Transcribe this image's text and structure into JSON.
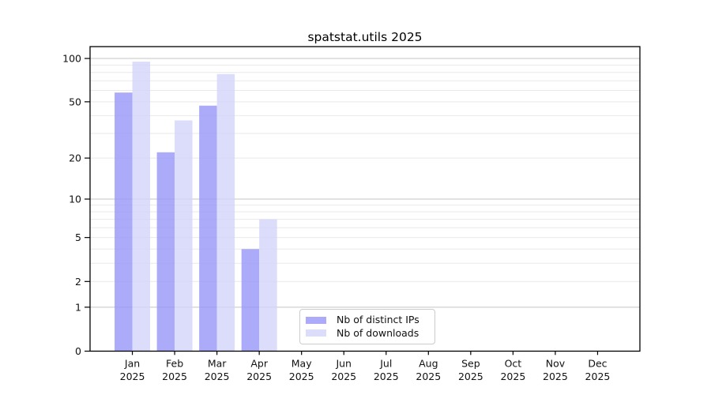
{
  "chart_data": {
    "type": "bar",
    "title": "spatstat.utils 2025",
    "categories": [
      "Jan",
      "Feb",
      "Mar",
      "Apr",
      "May",
      "Jun",
      "Jul",
      "Aug",
      "Sep",
      "Oct",
      "Nov",
      "Dec"
    ],
    "year_label": "2025",
    "series": [
      {
        "name": "Nb of distinct IPs",
        "color": "#9898f8",
        "values": [
          58,
          22,
          47,
          4,
          0,
          0,
          0,
          0,
          0,
          0,
          0,
          0
        ]
      },
      {
        "name": "Nb of downloads",
        "color": "#d4d4fa",
        "values": [
          95,
          37,
          78,
          7,
          0,
          0,
          0,
          0,
          0,
          0,
          0,
          0
        ]
      }
    ],
    "y_axis": {
      "scale": "log1p",
      "range": [
        0,
        100
      ],
      "labeled_ticks": [
        0,
        1,
        2,
        5,
        10,
        20,
        50,
        100
      ],
      "major_grid": [
        1,
        10,
        100
      ],
      "minor_grid": [
        2,
        3,
        4,
        5,
        6,
        7,
        8,
        9,
        20,
        30,
        40,
        50,
        60,
        70,
        80,
        90
      ]
    },
    "bar_opacity": 0.82,
    "legend_position": "bottom-center",
    "colors": {
      "axis": "#000000",
      "major_grid": "#c4c4c4",
      "minor_grid": "#e9e9e9",
      "text": "#111111",
      "background": "#ffffff"
    }
  }
}
